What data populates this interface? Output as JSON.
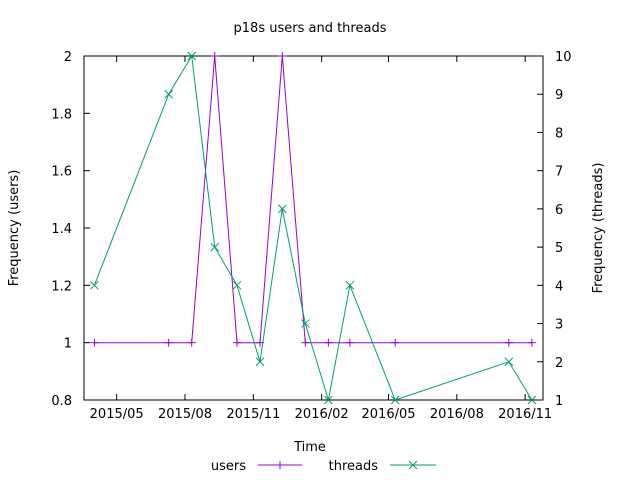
{
  "chart_data": {
    "type": "line",
    "title": "p18s users and threads",
    "xlabel": "Time",
    "ylabel_left": "Frequency (users)",
    "ylabel_right": "Frequency (threads)",
    "x_ticks": [
      "2015/05",
      "2015/08",
      "2015/11",
      "2016/02",
      "2016/05",
      "2016/08",
      "2016/11"
    ],
    "y_left_ticks": [
      "0.8",
      "1",
      "1.2",
      "1.4",
      "1.6",
      "1.8",
      "2"
    ],
    "y_right_ticks": [
      "1",
      "2",
      "3",
      "4",
      "5",
      "6",
      "7",
      "8",
      "9",
      "10"
    ],
    "y_left_range": [
      0.8,
      2
    ],
    "y_right_range": [
      1,
      10
    ],
    "x_range": [
      "2015-03-18",
      "2016-11-25"
    ],
    "grid": false,
    "legend_position": "bottom",
    "series": [
      {
        "name": "users",
        "axis": "left",
        "color": "#9400d3",
        "marker": "plus",
        "points": [
          {
            "x": "2015-04-01",
            "y": 1
          },
          {
            "x": "2015-07-10",
            "y": 1
          },
          {
            "x": "2015-08-10",
            "y": 1
          },
          {
            "x": "2015-09-10",
            "y": 2
          },
          {
            "x": "2015-10-10",
            "y": 1
          },
          {
            "x": "2015-11-10",
            "y": 1
          },
          {
            "x": "2015-12-10",
            "y": 2
          },
          {
            "x": "2016-01-10",
            "y": 1
          },
          {
            "x": "2016-02-10",
            "y": 1
          },
          {
            "x": "2016-03-10",
            "y": 1
          },
          {
            "x": "2016-05-10",
            "y": 1
          },
          {
            "x": "2016-10-10",
            "y": 1
          },
          {
            "x": "2016-11-10",
            "y": 1
          }
        ]
      },
      {
        "name": "threads",
        "axis": "right",
        "color": "#009e73",
        "marker": "cross",
        "points": [
          {
            "x": "2015-04-01",
            "y": 4
          },
          {
            "x": "2015-07-10",
            "y": 9
          },
          {
            "x": "2015-08-10",
            "y": 10
          },
          {
            "x": "2015-09-10",
            "y": 5
          },
          {
            "x": "2015-10-10",
            "y": 4
          },
          {
            "x": "2015-11-10",
            "y": 2
          },
          {
            "x": "2015-12-10",
            "y": 6
          },
          {
            "x": "2016-01-10",
            "y": 3
          },
          {
            "x": "2016-02-10",
            "y": 1
          },
          {
            "x": "2016-03-10",
            "y": 4
          },
          {
            "x": "2016-05-10",
            "y": 1
          },
          {
            "x": "2016-10-10",
            "y": 2
          },
          {
            "x": "2016-11-10",
            "y": 1
          }
        ]
      }
    ]
  }
}
